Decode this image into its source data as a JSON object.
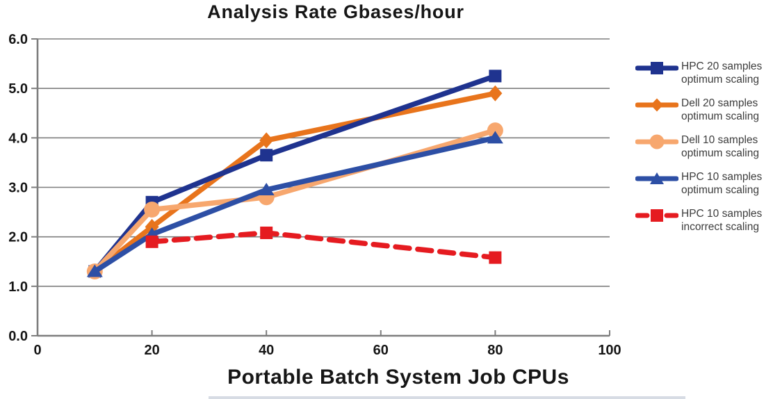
{
  "title": "Analysis Rate Gbases/hour",
  "x_axis_title": "Portable Batch System Job CPUs",
  "chart_data": {
    "type": "line",
    "title": "Analysis Rate Gbases/hour",
    "xlabel": "Portable Batch System Job CPUs",
    "ylabel": "",
    "xlim": [
      0,
      100
    ],
    "ylim": [
      0.0,
      6.0
    ],
    "x_tick_labels": [
      "0",
      "20",
      "40",
      "60",
      "80",
      "100"
    ],
    "x_tick_values": [
      0,
      20,
      40,
      60,
      80,
      100
    ],
    "y_tick_labels": [
      "0.0",
      "1.0",
      "2.0",
      "3.0",
      "4.0",
      "5.0",
      "6.0"
    ],
    "y_tick_values": [
      0,
      1,
      2,
      3,
      4,
      5,
      6
    ],
    "grid": "horizontal",
    "legend_position": "right",
    "colors": {
      "grid": "#7d7d7d",
      "axis": "#7d7d7d",
      "tick_text": "#161616",
      "legend_text": "#3c3c3c"
    },
    "series": [
      {
        "name": "HPC 20 samples optimum scaling",
        "legend_lines": [
          "HPC 20 samples",
          "optimum scaling"
        ],
        "color": "#1f338f",
        "marker": "square",
        "dashed": false,
        "x": [
          10,
          20,
          40,
          80
        ],
        "y": [
          1.3,
          2.7,
          3.65,
          5.25
        ]
      },
      {
        "name": "Dell 20 samples optimum scaling",
        "legend_lines": [
          "Dell 20 samples",
          "optimum scaling"
        ],
        "color": "#e8741c",
        "marker": "diamond",
        "dashed": false,
        "x": [
          10,
          20,
          40,
          80
        ],
        "y": [
          1.3,
          2.2,
          3.95,
          4.9
        ]
      },
      {
        "name": "Dell 10 samples optimum scaling",
        "legend_lines": [
          "Dell 10 samples",
          "optimum scaling"
        ],
        "color": "#f7a76e",
        "marker": "circle",
        "dashed": false,
        "x": [
          10,
          20,
          40,
          80
        ],
        "y": [
          1.3,
          2.55,
          2.8,
          4.15
        ]
      },
      {
        "name": "HPC 10 samples optimum scaling",
        "legend_lines": [
          "HPC 10 samples",
          "optimum scaling"
        ],
        "color": "#2d4fa5",
        "marker": "triangle",
        "dashed": false,
        "x": [
          10,
          20,
          40,
          80
        ],
        "y": [
          1.3,
          2.05,
          2.95,
          4.0
        ]
      },
      {
        "name": "HPC 10 samples incorrect scaling",
        "legend_lines": [
          "HPC 10 samples",
          "incorrect scaling"
        ],
        "color": "#e51b20",
        "marker": "square",
        "dashed": true,
        "x": [
          20,
          40,
          80
        ],
        "y": [
          1.9,
          2.08,
          1.58
        ]
      }
    ]
  }
}
